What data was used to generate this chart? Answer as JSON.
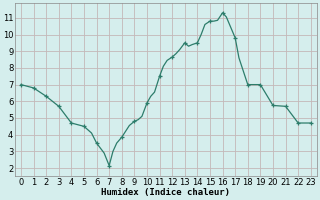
{
  "x": [
    0,
    1,
    2,
    3,
    4,
    5,
    5.3,
    5.6,
    6,
    6.3,
    6.6,
    7,
    7.3,
    7.6,
    8,
    8.3,
    8.6,
    9,
    9.3,
    9.6,
    10,
    10.3,
    10.6,
    11,
    11.3,
    11.6,
    12,
    12.3,
    12.6,
    13,
    13.3,
    13.6,
    14,
    14.3,
    14.6,
    15,
    15.3,
    15.6,
    16,
    16.3,
    17,
    17.3,
    18,
    19,
    20,
    21,
    22,
    23
  ],
  "y": [
    7.0,
    6.8,
    6.3,
    5.7,
    4.7,
    4.5,
    4.3,
    4.1,
    3.5,
    3.2,
    2.9,
    2.15,
    3.0,
    3.5,
    3.85,
    4.2,
    4.55,
    4.8,
    4.9,
    5.1,
    5.9,
    6.3,
    6.55,
    7.5,
    8.1,
    8.45,
    8.65,
    8.85,
    9.1,
    9.5,
    9.3,
    9.4,
    9.5,
    10.0,
    10.6,
    10.8,
    10.8,
    10.85,
    11.3,
    11.05,
    9.8,
    8.6,
    7.0,
    7.0,
    5.75,
    5.7,
    4.7,
    4.7
  ],
  "marker_x": [
    0,
    1,
    2,
    3,
    4,
    5,
    6,
    7,
    8,
    9,
    10,
    11,
    12,
    13,
    14,
    15,
    16,
    17,
    18,
    19,
    20,
    21,
    22,
    23
  ],
  "marker_y": [
    7.0,
    6.8,
    6.3,
    5.7,
    4.7,
    4.5,
    3.5,
    2.15,
    3.85,
    4.8,
    5.9,
    7.5,
    8.65,
    9.5,
    9.5,
    10.8,
    11.3,
    9.8,
    7.0,
    7.0,
    5.75,
    5.7,
    4.7,
    4.7
  ],
  "line_color": "#2d7d6b",
  "marker_color": "#2d7d6b",
  "bg_color": "#d5eeed",
  "grid_color": "#c4b8b8",
  "xlabel": "Humidex (Indice chaleur)",
  "yticks": [
    2,
    3,
    4,
    5,
    6,
    7,
    8,
    9,
    10,
    11
  ],
  "xticks": [
    0,
    1,
    2,
    3,
    4,
    5,
    6,
    7,
    8,
    9,
    10,
    11,
    12,
    13,
    14,
    15,
    16,
    17,
    18,
    19,
    20,
    21,
    22,
    23
  ],
  "ylim": [
    1.5,
    11.9
  ],
  "xlim": [
    -0.5,
    23.5
  ],
  "xlabel_fontsize": 6.5,
  "tick_fontsize": 6
}
